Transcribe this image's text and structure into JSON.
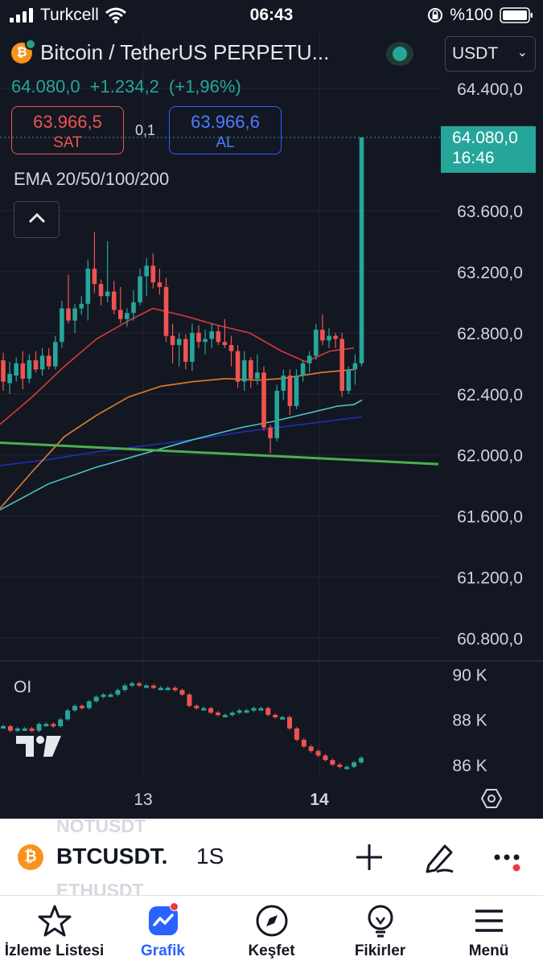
{
  "status_bar": {
    "carrier": "Turkcell",
    "time": "06:43",
    "battery": "%100"
  },
  "header": {
    "symbol_title": "Bitcoin / TetherUS PERPETU...",
    "currency": "USDT",
    "last_price": "64.080,0",
    "change": "+1.234,2",
    "change_pct": "(+1,96%)",
    "sell_price": "63.966,5",
    "sell_label": "SAT",
    "spread": "0,1",
    "buy_price": "63.966,6",
    "buy_label": "AL",
    "indicator": "EMA 20/50/100/200"
  },
  "chart_data": {
    "type": "candlestick",
    "price_axis_ticks": [
      "64.400,0",
      "63.600,0",
      "63.200,0",
      "62.800,0",
      "62.400,0",
      "62.000,0",
      "61.600,0",
      "61.200,0",
      "60.800,0"
    ],
    "price_axis_tick_values": [
      64400,
      63600,
      63200,
      62800,
      62400,
      62000,
      61600,
      61200,
      60800
    ],
    "ylim": [
      60650,
      64780
    ],
    "x_ticks": [
      "13",
      "14"
    ],
    "last_price_label": "64.080,0",
    "countdown_label": "16:46",
    "last_price": 64080,
    "colors": {
      "up": "#26a69a",
      "down": "#ef5350",
      "ema20": "#d63a3a",
      "ema50": "#e07f2c",
      "ema100": "#4fc3c7",
      "ema200": "#1f2fb0",
      "trendline": "#4caf50"
    },
    "candles": [
      [
        62620,
        62670,
        62420,
        62480
      ],
      [
        62470,
        62610,
        62400,
        62530
      ],
      [
        62520,
        62640,
        62480,
        62600
      ],
      [
        62600,
        62680,
        62430,
        62500
      ],
      [
        62500,
        62660,
        62470,
        62620
      ],
      [
        62620,
        62680,
        62540,
        62560
      ],
      [
        62560,
        62700,
        62520,
        62650
      ],
      [
        62650,
        62700,
        62560,
        62580
      ],
      [
        62580,
        62780,
        62560,
        62740
      ],
      [
        62740,
        63010,
        62700,
        62960
      ],
      [
        62960,
        63180,
        62860,
        62880
      ],
      [
        62880,
        62990,
        62800,
        62960
      ],
      [
        62960,
        63040,
        62920,
        62990
      ],
      [
        62990,
        63280,
        62880,
        63220
      ],
      [
        63220,
        63460,
        63060,
        63120
      ],
      [
        63120,
        63150,
        62980,
        63040
      ],
      [
        63040,
        63400,
        63000,
        63070
      ],
      [
        63070,
        63140,
        62920,
        62950
      ],
      [
        62950,
        63100,
        62860,
        62890
      ],
      [
        62890,
        62960,
        62840,
        62930
      ],
      [
        62930,
        63080,
        62880,
        63000
      ],
      [
        63000,
        63220,
        62980,
        63170
      ],
      [
        63170,
        63290,
        63040,
        63240
      ],
      [
        63240,
        63320,
        63090,
        63130
      ],
      [
        63130,
        63220,
        63050,
        63100
      ],
      [
        63100,
        63160,
        62740,
        62780
      ],
      [
        62780,
        62860,
        62600,
        62720
      ],
      [
        62720,
        62800,
        62580,
        62760
      ],
      [
        62760,
        62790,
        62560,
        62610
      ],
      [
        62610,
        62860,
        62550,
        62800
      ],
      [
        62800,
        62850,
        62700,
        62740
      ],
      [
        62740,
        62820,
        62660,
        62760
      ],
      [
        62760,
        62860,
        62700,
        62810
      ],
      [
        62810,
        62850,
        62720,
        62740
      ],
      [
        62740,
        62890,
        62700,
        62720
      ],
      [
        62720,
        62780,
        62580,
        62680
      ],
      [
        62680,
        62720,
        62440,
        62480
      ],
      [
        62480,
        62680,
        62420,
        62620
      ],
      [
        62620,
        62640,
        62440,
        62500
      ],
      [
        62500,
        62660,
        62460,
        62540
      ],
      [
        62540,
        62580,
        62160,
        62180
      ],
      [
        62180,
        62200,
        62010,
        62110
      ],
      [
        62110,
        62460,
        62090,
        62420
      ],
      [
        62420,
        62560,
        62360,
        62520
      ],
      [
        62520,
        62560,
        62260,
        62320
      ],
      [
        62320,
        62560,
        62300,
        62520
      ],
      [
        62520,
        62620,
        62480,
        62600
      ],
      [
        62600,
        62680,
        62540,
        62650
      ],
      [
        62650,
        62860,
        62620,
        62820
      ],
      [
        62820,
        62920,
        62720,
        62750
      ],
      [
        62750,
        62830,
        62700,
        62780
      ],
      [
        62780,
        62800,
        62700,
        62760
      ],
      [
        62760,
        62800,
        62380,
        62420
      ],
      [
        62420,
        62580,
        62400,
        62560
      ],
      [
        62560,
        62660,
        62460,
        62600
      ],
      [
        62600,
        64080,
        62580,
        64080
      ]
    ],
    "ema20": [
      [
        0,
        62200
      ],
      [
        40,
        62380
      ],
      [
        80,
        62580
      ],
      [
        120,
        62760
      ],
      [
        160,
        62880
      ],
      [
        190,
        62960
      ],
      [
        230,
        62910
      ],
      [
        270,
        62850
      ],
      [
        310,
        62800
      ],
      [
        350,
        62680
      ],
      [
        380,
        62610
      ],
      [
        410,
        62680
      ],
      [
        440,
        62700
      ]
    ],
    "ema50": [
      [
        0,
        61650
      ],
      [
        40,
        61890
      ],
      [
        80,
        62120
      ],
      [
        120,
        62260
      ],
      [
        160,
        62380
      ],
      [
        200,
        62450
      ],
      [
        240,
        62480
      ],
      [
        280,
        62500
      ],
      [
        320,
        62490
      ],
      [
        350,
        62500
      ],
      [
        400,
        62540
      ],
      [
        440,
        62560
      ]
    ],
    "ema100": [
      [
        0,
        61640
      ],
      [
        60,
        61810
      ],
      [
        120,
        61920
      ],
      [
        180,
        62010
      ],
      [
        240,
        62100
      ],
      [
        300,
        62180
      ],
      [
        340,
        62220
      ],
      [
        380,
        62270
      ],
      [
        420,
        62320
      ],
      [
        440,
        62330
      ],
      [
        450,
        62360
      ]
    ],
    "ema200": [
      [
        0,
        61930
      ],
      [
        60,
        61970
      ],
      [
        120,
        62020
      ],
      [
        180,
        62060
      ],
      [
        240,
        62100
      ],
      [
        300,
        62150
      ],
      [
        360,
        62190
      ],
      [
        420,
        62230
      ],
      [
        450,
        62250
      ]
    ],
    "trendline": [
      [
        0,
        62080
      ],
      [
        545,
        61940
      ]
    ],
    "oi": {
      "label": "OI",
      "ticks": [
        "90 K",
        "88 K",
        "86 K"
      ],
      "tick_values": [
        90,
        88,
        86
      ],
      "ylim": [
        85.6,
        90.3
      ],
      "values": [
        87.7,
        87.5,
        87.6,
        87.6,
        87.5,
        87.8,
        87.8,
        87.7,
        88.0,
        88.4,
        88.6,
        88.5,
        88.8,
        89.0,
        89.1,
        89.1,
        89.3,
        89.5,
        89.6,
        89.5,
        89.5,
        89.4,
        89.4,
        89.4,
        89.3,
        89.1,
        88.6,
        88.5,
        88.5,
        88.3,
        88.2,
        88.2,
        88.3,
        88.4,
        88.4,
        88.5,
        88.5,
        88.2,
        88.1,
        88.1,
        87.6,
        87.1,
        86.8,
        86.6,
        86.4,
        86.2,
        86.0,
        85.9,
        85.9,
        86.1,
        86.3
      ]
    }
  },
  "ticker": {
    "symbol": "BTCUSDT.",
    "interval": "1S",
    "ghost_above": "NOTUSDT",
    "ghost_below": "ETHUSDT"
  },
  "tabs": [
    {
      "label": "İzleme Listesi"
    },
    {
      "label": "Grafik"
    },
    {
      "label": "Keşfet"
    },
    {
      "label": "Fikirler"
    },
    {
      "label": "Menü"
    }
  ]
}
